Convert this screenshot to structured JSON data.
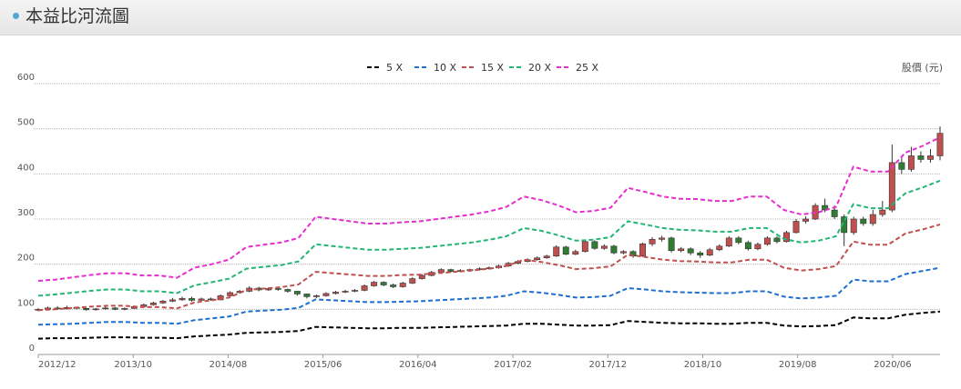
{
  "header": {
    "title": "本益比河流圖"
  },
  "chart_data": {
    "type": "line",
    "title": "本益比河流圖",
    "ylabel": "股價 (元)",
    "ylim": [
      0,
      600
    ],
    "yticks": [
      0,
      100,
      200,
      300,
      400,
      500,
      600
    ],
    "x_start": "2012/12",
    "x_end": "2020/11",
    "xtick_labels": [
      "2012/12",
      "2013/10",
      "2014/08",
      "2015/06",
      "2016/04",
      "2017/02",
      "2017/12",
      "2018/10",
      "2019/08",
      "2020/06"
    ],
    "grid": "horizontal, dotted",
    "legend_position": "top-center",
    "series": [
      {
        "name": "5 X",
        "color": "#000000",
        "values": [
          35,
          36,
          36,
          37,
          38,
          38,
          37,
          37,
          36,
          40,
          42,
          44,
          48,
          49,
          50,
          52,
          61,
          60,
          59,
          58,
          58,
          59,
          59,
          60,
          61,
          62,
          63,
          64,
          68,
          68,
          66,
          64,
          64,
          65,
          74,
          72,
          70,
          69,
          69,
          68,
          68,
          70,
          70,
          64,
          62,
          63,
          65,
          82,
          80,
          80,
          88,
          92,
          95
        ]
      },
      {
        "name": "10 X",
        "color": "#1f6fd0",
        "values": [
          66,
          67,
          68,
          70,
          72,
          72,
          70,
          70,
          68,
          76,
          80,
          84,
          95,
          97,
          99,
          103,
          122,
          120,
          118,
          116,
          116,
          117,
          118,
          120,
          122,
          124,
          126,
          130,
          140,
          137,
          132,
          126,
          127,
          130,
          147,
          144,
          140,
          138,
          137,
          136,
          136,
          140,
          140,
          128,
          124,
          126,
          130,
          166,
          162,
          162,
          178,
          185,
          192
        ]
      },
      {
        "name": "15 X",
        "color": "#c0504d",
        "values": [
          98,
          100,
          103,
          106,
          108,
          108,
          105,
          105,
          102,
          115,
          120,
          126,
          143,
          146,
          149,
          155,
          183,
          180,
          177,
          174,
          174,
          176,
          177,
          180,
          183,
          186,
          190,
          196,
          210,
          205,
          198,
          189,
          191,
          195,
          221,
          216,
          210,
          207,
          206,
          204,
          204,
          210,
          210,
          192,
          186,
          189,
          196,
          250,
          243,
          243,
          268,
          277,
          288
        ]
      },
      {
        "name": "20 X",
        "color": "#22b573",
        "values": [
          130,
          133,
          137,
          141,
          144,
          144,
          140,
          140,
          136,
          153,
          160,
          168,
          190,
          194,
          198,
          206,
          244,
          240,
          236,
          232,
          232,
          234,
          236,
          240,
          244,
          248,
          254,
          262,
          280,
          274,
          264,
          252,
          254,
          260,
          295,
          288,
          280,
          276,
          275,
          272,
          272,
          280,
          280,
          256,
          248,
          252,
          262,
          333,
          324,
          324,
          357,
          370,
          385
        ]
      },
      {
        "name": "25 X",
        "color": "#e62ecf",
        "values": [
          163,
          166,
          171,
          176,
          180,
          180,
          175,
          175,
          170,
          192,
          200,
          210,
          238,
          243,
          248,
          258,
          305,
          300,
          295,
          290,
          290,
          293,
          295,
          300,
          305,
          310,
          317,
          327,
          350,
          342,
          330,
          315,
          318,
          325,
          369,
          360,
          350,
          345,
          344,
          340,
          340,
          350,
          350,
          320,
          310,
          315,
          327,
          416,
          405,
          405,
          447,
          462,
          481
        ]
      }
    ],
    "candles": [
      {
        "o": 98,
        "c": 100,
        "h": 103,
        "l": 96
      },
      {
        "o": 100,
        "c": 103,
        "h": 106,
        "l": 99
      },
      {
        "o": 103,
        "c": 101,
        "h": 107,
        "l": 99
      },
      {
        "o": 101,
        "c": 104,
        "h": 108,
        "l": 100
      },
      {
        "o": 104,
        "c": 102,
        "h": 106,
        "l": 100
      },
      {
        "o": 102,
        "c": 99,
        "h": 104,
        "l": 97
      },
      {
        "o": 99,
        "c": 101,
        "h": 103,
        "l": 97
      },
      {
        "o": 101,
        "c": 103,
        "h": 106,
        "l": 99
      },
      {
        "o": 103,
        "c": 100,
        "h": 105,
        "l": 98
      },
      {
        "o": 100,
        "c": 102,
        "h": 104,
        "l": 98
      },
      {
        "o": 102,
        "c": 106,
        "h": 108,
        "l": 101
      },
      {
        "o": 106,
        "c": 110,
        "h": 113,
        "l": 104
      },
      {
        "o": 110,
        "c": 114,
        "h": 117,
        "l": 108
      },
      {
        "o": 114,
        "c": 118,
        "h": 121,
        "l": 112
      },
      {
        "o": 118,
        "c": 121,
        "h": 125,
        "l": 116
      },
      {
        "o": 121,
        "c": 124,
        "h": 128,
        "l": 119
      },
      {
        "o": 124,
        "c": 120,
        "h": 128,
        "l": 117
      },
      {
        "o": 120,
        "c": 123,
        "h": 126,
        "l": 118
      },
      {
        "o": 123,
        "c": 121,
        "h": 126,
        "l": 119
      },
      {
        "o": 121,
        "c": 130,
        "h": 133,
        "l": 120
      },
      {
        "o": 130,
        "c": 137,
        "h": 140,
        "l": 128
      },
      {
        "o": 137,
        "c": 140,
        "h": 143,
        "l": 135
      },
      {
        "o": 140,
        "c": 147,
        "h": 151,
        "l": 138
      },
      {
        "o": 147,
        "c": 143,
        "h": 150,
        "l": 140
      },
      {
        "o": 143,
        "c": 146,
        "h": 149,
        "l": 141
      },
      {
        "o": 146,
        "c": 144,
        "h": 148,
        "l": 141
      },
      {
        "o": 144,
        "c": 140,
        "h": 146,
        "l": 137
      },
      {
        "o": 140,
        "c": 134,
        "h": 141,
        "l": 130
      },
      {
        "o": 134,
        "c": 128,
        "h": 135,
        "l": 124
      },
      {
        "o": 128,
        "c": 130,
        "h": 133,
        "l": 125
      },
      {
        "o": 130,
        "c": 135,
        "h": 138,
        "l": 128
      },
      {
        "o": 135,
        "c": 138,
        "h": 141,
        "l": 133
      },
      {
        "o": 138,
        "c": 140,
        "h": 143,
        "l": 136
      },
      {
        "o": 140,
        "c": 142,
        "h": 145,
        "l": 138
      },
      {
        "o": 142,
        "c": 152,
        "h": 155,
        "l": 140
      },
      {
        "o": 152,
        "c": 160,
        "h": 163,
        "l": 150
      },
      {
        "o": 160,
        "c": 154,
        "h": 162,
        "l": 151
      },
      {
        "o": 154,
        "c": 150,
        "h": 157,
        "l": 147
      },
      {
        "o": 150,
        "c": 158,
        "h": 161,
        "l": 148
      },
      {
        "o": 158,
        "c": 168,
        "h": 171,
        "l": 156
      },
      {
        "o": 168,
        "c": 175,
        "h": 178,
        "l": 166
      },
      {
        "o": 175,
        "c": 182,
        "h": 185,
        "l": 173
      },
      {
        "o": 182,
        "c": 188,
        "h": 191,
        "l": 180
      },
      {
        "o": 188,
        "c": 184,
        "h": 190,
        "l": 181
      },
      {
        "o": 184,
        "c": 186,
        "h": 189,
        "l": 182
      },
      {
        "o": 186,
        "c": 188,
        "h": 190,
        "l": 184
      },
      {
        "o": 188,
        "c": 190,
        "h": 193,
        "l": 186
      },
      {
        "o": 190,
        "c": 192,
        "h": 195,
        "l": 188
      },
      {
        "o": 192,
        "c": 196,
        "h": 199,
        "l": 190
      },
      {
        "o": 196,
        "c": 202,
        "h": 205,
        "l": 194
      },
      {
        "o": 202,
        "c": 206,
        "h": 209,
        "l": 200
      },
      {
        "o": 206,
        "c": 210,
        "h": 213,
        "l": 204
      },
      {
        "o": 210,
        "c": 214,
        "h": 217,
        "l": 208
      },
      {
        "o": 214,
        "c": 218,
        "h": 221,
        "l": 212
      },
      {
        "o": 218,
        "c": 238,
        "h": 242,
        "l": 216
      },
      {
        "o": 238,
        "c": 222,
        "h": 241,
        "l": 220
      },
      {
        "o": 222,
        "c": 228,
        "h": 232,
        "l": 220
      },
      {
        "o": 228,
        "c": 250,
        "h": 254,
        "l": 226
      },
      {
        "o": 250,
        "c": 235,
        "h": 253,
        "l": 232
      },
      {
        "o": 235,
        "c": 240,
        "h": 244,
        "l": 232
      },
      {
        "o": 240,
        "c": 225,
        "h": 243,
        "l": 222
      },
      {
        "o": 225,
        "c": 228,
        "h": 231,
        "l": 222
      },
      {
        "o": 228,
        "c": 218,
        "h": 231,
        "l": 214
      },
      {
        "o": 218,
        "c": 245,
        "h": 248,
        "l": 216
      },
      {
        "o": 245,
        "c": 255,
        "h": 260,
        "l": 240
      },
      {
        "o": 255,
        "c": 258,
        "h": 263,
        "l": 250
      },
      {
        "o": 258,
        "c": 230,
        "h": 261,
        "l": 226
      },
      {
        "o": 230,
        "c": 234,
        "h": 238,
        "l": 226
      },
      {
        "o": 234,
        "c": 225,
        "h": 237,
        "l": 220
      },
      {
        "o": 225,
        "c": 220,
        "h": 229,
        "l": 214
      },
      {
        "o": 220,
        "c": 232,
        "h": 236,
        "l": 218
      },
      {
        "o": 232,
        "c": 240,
        "h": 244,
        "l": 229
      },
      {
        "o": 240,
        "c": 258,
        "h": 262,
        "l": 238
      },
      {
        "o": 258,
        "c": 248,
        "h": 262,
        "l": 244
      },
      {
        "o": 248,
        "c": 234,
        "h": 252,
        "l": 230
      },
      {
        "o": 234,
        "c": 244,
        "h": 248,
        "l": 231
      },
      {
        "o": 244,
        "c": 258,
        "h": 262,
        "l": 241
      },
      {
        "o": 258,
        "c": 250,
        "h": 262,
        "l": 246
      },
      {
        "o": 250,
        "c": 270,
        "h": 274,
        "l": 248
      },
      {
        "o": 270,
        "c": 295,
        "h": 300,
        "l": 268
      },
      {
        "o": 295,
        "c": 300,
        "h": 306,
        "l": 290
      },
      {
        "o": 300,
        "c": 330,
        "h": 335,
        "l": 298
      },
      {
        "o": 330,
        "c": 320,
        "h": 345,
        "l": 315
      },
      {
        "o": 320,
        "c": 305,
        "h": 330,
        "l": 300
      },
      {
        "o": 305,
        "c": 270,
        "h": 310,
        "l": 240
      },
      {
        "o": 270,
        "c": 300,
        "h": 305,
        "l": 265
      },
      {
        "o": 300,
        "c": 290,
        "h": 305,
        "l": 285
      },
      {
        "o": 290,
        "c": 310,
        "h": 320,
        "l": 285
      },
      {
        "o": 310,
        "c": 320,
        "h": 340,
        "l": 305
      },
      {
        "o": 320,
        "c": 425,
        "h": 465,
        "l": 315
      },
      {
        "o": 425,
        "c": 410,
        "h": 440,
        "l": 400
      },
      {
        "o": 410,
        "c": 440,
        "h": 460,
        "l": 405
      },
      {
        "o": 440,
        "c": 432,
        "h": 450,
        "l": 425
      },
      {
        "o": 432,
        "c": 440,
        "h": 455,
        "l": 425
      },
      {
        "o": 440,
        "c": 490,
        "h": 505,
        "l": 430
      }
    ]
  }
}
